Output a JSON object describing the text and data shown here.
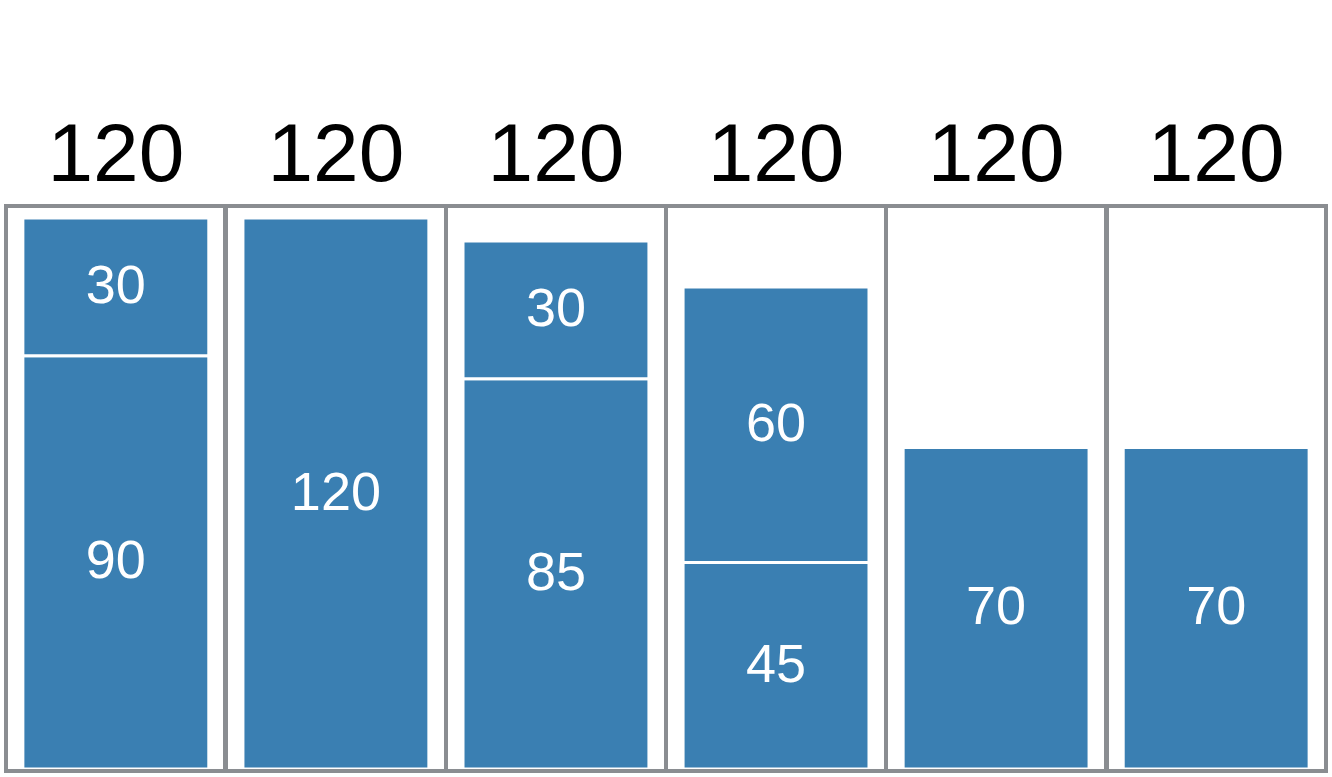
{
  "chart_data": {
    "type": "bar",
    "stacked": true,
    "data_labels": true,
    "categories": [
      null,
      null,
      null,
      null,
      null,
      null
    ],
    "series": [
      {
        "color": "#3a7fb2",
        "values": [
          90,
          120,
          85,
          45,
          70,
          70
        ]
      },
      {
        "color": "#3a7fb2",
        "values": [
          30,
          null,
          30,
          60,
          null,
          null
        ]
      }
    ],
    "annotations": [
      "120",
      "120",
      "120",
      "120",
      "120",
      "120"
    ]
  }
}
